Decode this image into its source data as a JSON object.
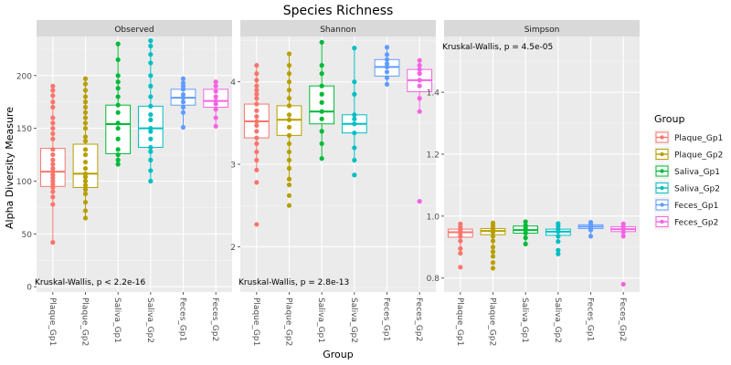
{
  "title": "Species Richness",
  "xlabel": "Group",
  "ylabel": "Alpha Diversity Measure",
  "legend": {
    "title": "Group",
    "placement": "right",
    "items": [
      {
        "label": "Plaque_Gp1",
        "color": "#F8766D"
      },
      {
        "label": "Plaque_Gp2",
        "color": "#B79F00"
      },
      {
        "label": "Saliva_Gp1",
        "color": "#00BA38"
      },
      {
        "label": "Saliva_Gp2",
        "color": "#00BFC4"
      },
      {
        "label": "Feces_Gp1",
        "color": "#619CFF"
      },
      {
        "label": "Feces_Gp2",
        "color": "#F564E3"
      }
    ]
  },
  "chart_data": [
    {
      "type": "boxplot",
      "facet": "Observed",
      "annotation": "Kruskal-Wallis, p < 2.2e-16",
      "categories": [
        "Plaque_Gp1",
        "Plaque_Gp2",
        "Saliva_Gp1",
        "Saliva_Gp2",
        "Feces_Gp1",
        "Feces_Gp2"
      ],
      "ylim": [
        -5,
        237
      ],
      "yticks": [
        0,
        50,
        100,
        150,
        200
      ],
      "boxes": [
        {
          "q1": 95,
          "median": 109,
          "q3": 131,
          "whisker_low": 42,
          "whisker_high": 190,
          "points": [
            42,
            78,
            85,
            90,
            94,
            97,
            100,
            103,
            106,
            109,
            112,
            116,
            120,
            125,
            130,
            140,
            145,
            150,
            155,
            160,
            170,
            175,
            181,
            186,
            190
          ]
        },
        {
          "q1": 94,
          "median": 107,
          "q3": 135,
          "whisker_low": 65,
          "whisker_high": 197,
          "points": [
            65,
            72,
            80,
            88,
            92,
            96,
            100,
            104,
            107,
            112,
            118,
            125,
            130,
            138,
            142,
            150,
            155,
            160,
            165,
            170,
            175,
            180,
            186,
            192,
            197
          ]
        },
        {
          "q1": 126,
          "median": 154,
          "q3": 172,
          "whisker_low": 116,
          "whisker_high": 230,
          "points": [
            116,
            120,
            125,
            130,
            140,
            150,
            155,
            165,
            172,
            180,
            188,
            194,
            200,
            215,
            230
          ]
        },
        {
          "q1": 132,
          "median": 150,
          "q3": 171,
          "whisker_low": 100,
          "whisker_high": 233,
          "points": [
            100,
            110,
            120,
            128,
            132,
            140,
            147,
            150,
            158,
            163,
            171,
            180,
            190,
            200,
            212,
            220,
            228,
            233
          ]
        },
        {
          "q1": 172,
          "median": 179,
          "q3": 187,
          "whisker_low": 151,
          "whisker_high": 197,
          "points": [
            151,
            165,
            170,
            175,
            179,
            182,
            187,
            190,
            193,
            197
          ]
        },
        {
          "q1": 170,
          "median": 176,
          "q3": 187,
          "whisker_low": 152,
          "whisker_high": 194,
          "points": [
            152,
            160,
            168,
            173,
            176,
            180,
            185,
            190,
            194
          ]
        }
      ]
    },
    {
      "type": "boxplot",
      "facet": "Shannon",
      "annotation": "Kruskal-Wallis, p = 2.8e-13",
      "categories": [
        "Plaque_Gp1",
        "Plaque_Gp2",
        "Saliva_Gp1",
        "Saliva_Gp2",
        "Feces_Gp1",
        "Feces_Gp2"
      ],
      "ylim": [
        1.45,
        4.55
      ],
      "yticks": [
        2,
        3,
        4
      ],
      "boxes": [
        {
          "q1": 3.32,
          "median": 3.52,
          "q3": 3.73,
          "whisker_low": 2.93,
          "whisker_high": 4.2,
          "points": [
            2.27,
            2.78,
            2.93,
            3.05,
            3.15,
            3.25,
            3.32,
            3.4,
            3.47,
            3.52,
            3.58,
            3.65,
            3.73,
            3.8,
            3.85,
            3.9,
            3.95,
            4.02,
            4.1,
            4.2
          ]
        },
        {
          "q1": 3.35,
          "median": 3.54,
          "q3": 3.71,
          "whisker_low": 2.82,
          "whisker_high": 4.34,
          "points": [
            2.5,
            2.62,
            2.75,
            2.82,
            2.95,
            3.05,
            3.15,
            3.25,
            3.35,
            3.45,
            3.54,
            3.6,
            3.71,
            3.8,
            3.9,
            4.0,
            4.1,
            4.2,
            4.34
          ]
        },
        {
          "q1": 3.49,
          "median": 3.64,
          "q3": 3.95,
          "whisker_low": 3.07,
          "whisker_high": 4.48,
          "points": [
            3.07,
            3.25,
            3.4,
            3.55,
            3.64,
            3.75,
            3.85,
            3.95,
            4.1,
            4.2,
            4.48
          ]
        },
        {
          "q1": 3.38,
          "median": 3.49,
          "q3": 3.6,
          "whisker_low": 3.05,
          "whisker_high": 4.41,
          "points": [
            2.87,
            3.05,
            3.2,
            3.38,
            3.49,
            3.55,
            3.6,
            3.85,
            4.0,
            4.41
          ]
        },
        {
          "q1": 4.07,
          "median": 4.18,
          "q3": 4.27,
          "whisker_low": 3.97,
          "whisker_high": 4.42,
          "points": [
            3.97,
            4.05,
            4.12,
            4.18,
            4.22,
            4.27,
            4.33,
            4.42
          ]
        },
        {
          "q1": 3.88,
          "median": 4.02,
          "q3": 4.15,
          "whisker_low": 3.64,
          "whisker_high": 4.26,
          "points": [
            2.55,
            3.64,
            3.8,
            3.95,
            4.02,
            4.1,
            4.15,
            4.2,
            4.26
          ]
        }
      ]
    },
    {
      "type": "boxplot",
      "facet": "Simpson",
      "annotation": "Kruskal-Wallis, p = 4.5e-05",
      "categories": [
        "Plaque_Gp1",
        "Plaque_Gp2",
        "Saliva_Gp1",
        "Saliva_Gp2",
        "Feces_Gp1",
        "Feces_Gp2"
      ],
      "ylim": [
        0.755,
        1.58
      ],
      "yticks": [
        0.8,
        1.0,
        1.2,
        1.4
      ],
      "boxes": [
        {
          "q1": 0.932,
          "median": 0.948,
          "q3": 0.958,
          "whisker_low": 0.895,
          "whisker_high": 0.975,
          "points": [
            0.835,
            0.88,
            0.895,
            0.92,
            0.935,
            0.945,
            0.952,
            0.958,
            0.965,
            0.975
          ]
        },
        {
          "q1": 0.94,
          "median": 0.952,
          "q3": 0.96,
          "whisker_low": 0.9,
          "whisker_high": 0.978,
          "points": [
            0.832,
            0.85,
            0.87,
            0.885,
            0.9,
            0.92,
            0.935,
            0.948,
            0.955,
            0.962,
            0.97,
            0.978
          ]
        },
        {
          "q1": 0.945,
          "median": 0.955,
          "q3": 0.968,
          "whisker_low": 0.91,
          "whisker_high": 0.982,
          "points": [
            0.91,
            0.93,
            0.945,
            0.955,
            0.962,
            0.97,
            0.982
          ]
        },
        {
          "q1": 0.938,
          "median": 0.95,
          "q3": 0.958,
          "whisker_low": 0.918,
          "whisker_high": 0.976,
          "points": [
            0.878,
            0.89,
            0.918,
            0.935,
            0.95,
            0.958,
            0.968,
            0.976
          ]
        },
        {
          "q1": 0.96,
          "median": 0.966,
          "q3": 0.972,
          "whisker_low": 0.935,
          "whisker_high": 0.98,
          "points": [
            0.935,
            0.955,
            0.962,
            0.966,
            0.972,
            0.98
          ]
        },
        {
          "q1": 0.95,
          "median": 0.958,
          "q3": 0.966,
          "whisker_low": 0.935,
          "whisker_high": 0.975,
          "points": [
            0.78,
            0.935,
            0.948,
            0.958,
            0.966,
            0.975
          ]
        }
      ]
    }
  ]
}
